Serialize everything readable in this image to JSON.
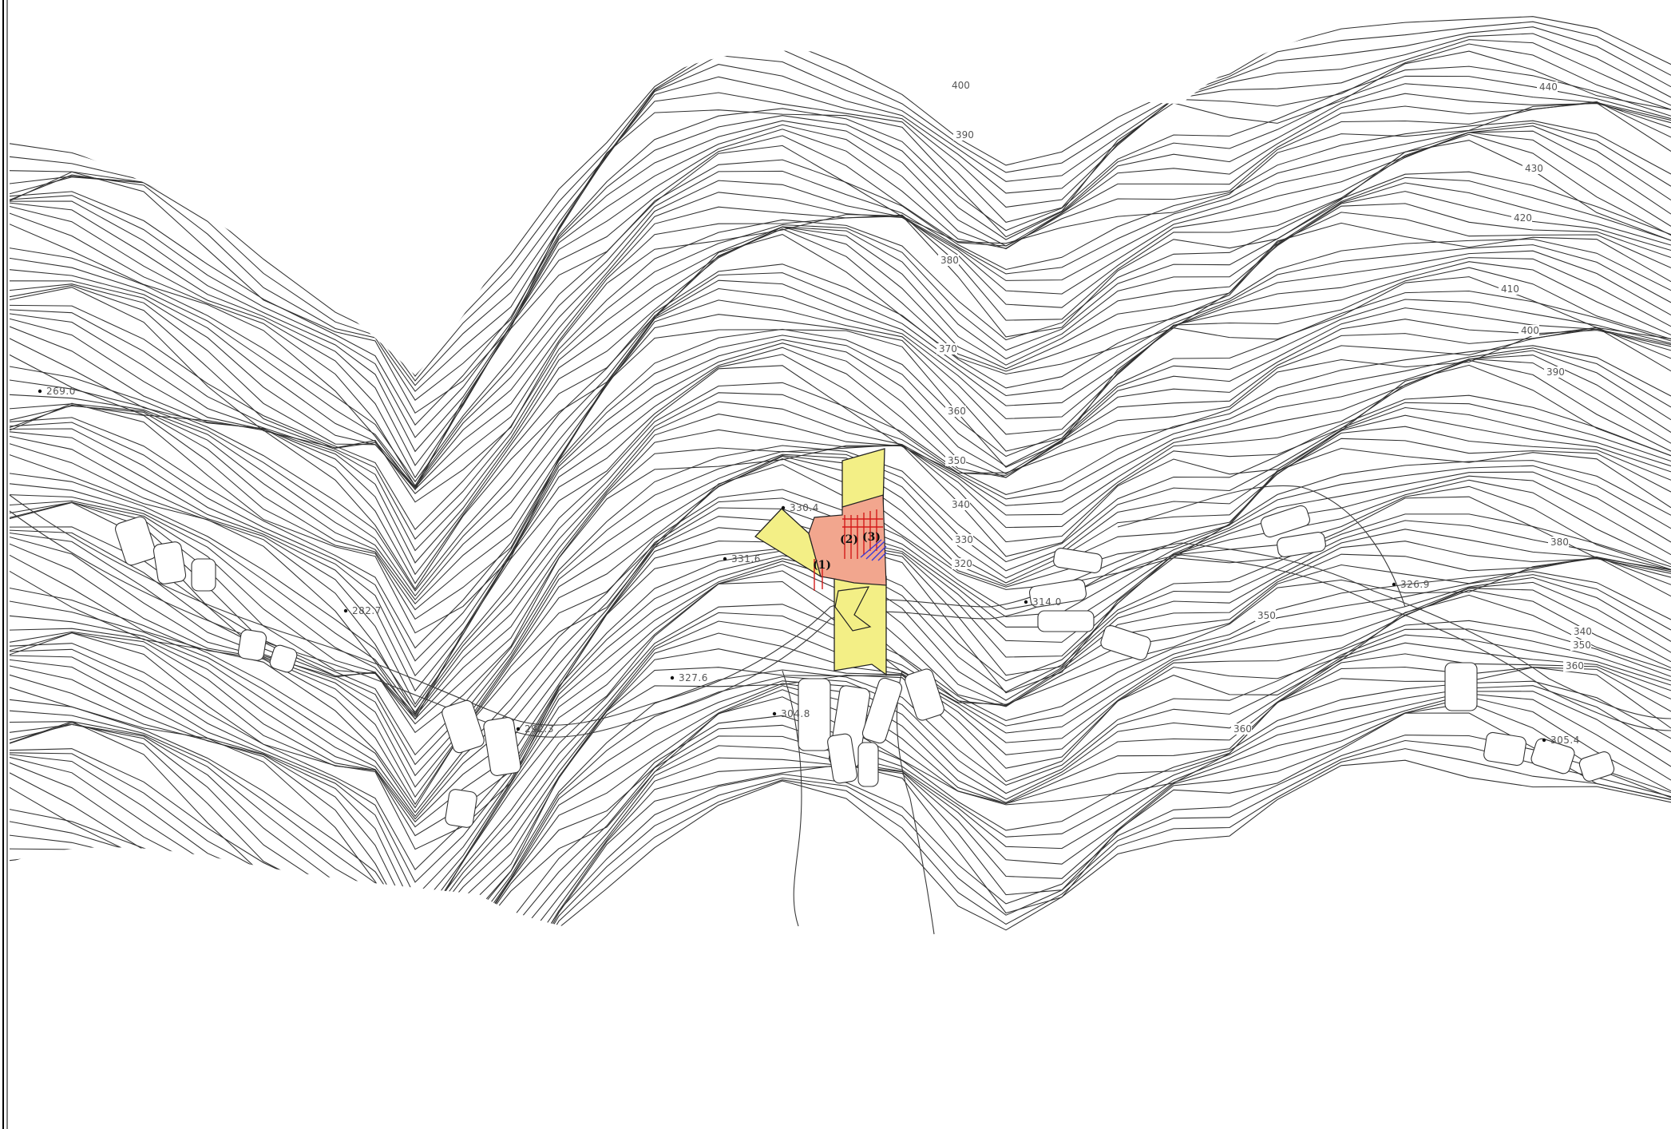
{
  "map": {
    "elevation_points": [
      {
        "id": "p1",
        "label": "269.0"
      },
      {
        "id": "p2",
        "label": "282.7"
      },
      {
        "id": "p3",
        "label": "292.3"
      },
      {
        "id": "p4",
        "label": "304.8"
      },
      {
        "id": "p5",
        "label": "327.6"
      },
      {
        "id": "p6",
        "label": "331.6"
      },
      {
        "id": "p7",
        "label": "330.4"
      },
      {
        "id": "p8",
        "label": "314.0"
      },
      {
        "id": "p9",
        "label": "326.9"
      },
      {
        "id": "p10",
        "label": "305.4"
      }
    ],
    "contour_labels": [
      {
        "id": "c1",
        "label": "400"
      },
      {
        "id": "c2",
        "label": "390"
      },
      {
        "id": "c3",
        "label": "380"
      },
      {
        "id": "c4",
        "label": "370"
      },
      {
        "id": "c5",
        "label": "360"
      },
      {
        "id": "c6",
        "label": "350"
      },
      {
        "id": "c7",
        "label": "340"
      },
      {
        "id": "c8",
        "label": "330"
      },
      {
        "id": "c9",
        "label": "320"
      },
      {
        "id": "c10",
        "label": "440"
      },
      {
        "id": "c11",
        "label": "430"
      },
      {
        "id": "c12",
        "label": "420"
      },
      {
        "id": "c13",
        "label": "410"
      },
      {
        "id": "c14",
        "label": "400"
      },
      {
        "id": "c15",
        "label": "390"
      },
      {
        "id": "c16",
        "label": "380"
      },
      {
        "id": "c17",
        "label": "340"
      },
      {
        "id": "c18",
        "label": "350"
      },
      {
        "id": "c19",
        "label": "360"
      },
      {
        "id": "c20",
        "label": "350"
      },
      {
        "id": "c21",
        "label": "360"
      }
    ],
    "zones": [
      {
        "id": "z1",
        "label": "(1)"
      },
      {
        "id": "z2",
        "label": "(2)"
      },
      {
        "id": "z3",
        "label": "(3)"
      }
    ],
    "colors": {
      "background": "#ffffff",
      "contour": "#303030",
      "yellow_zone": "#f3ef86",
      "red_zone": "#f2a68e",
      "red_hatch": "#d41a1a",
      "blue_hatch": "#3b3bd6",
      "frame": "#000000"
    }
  }
}
